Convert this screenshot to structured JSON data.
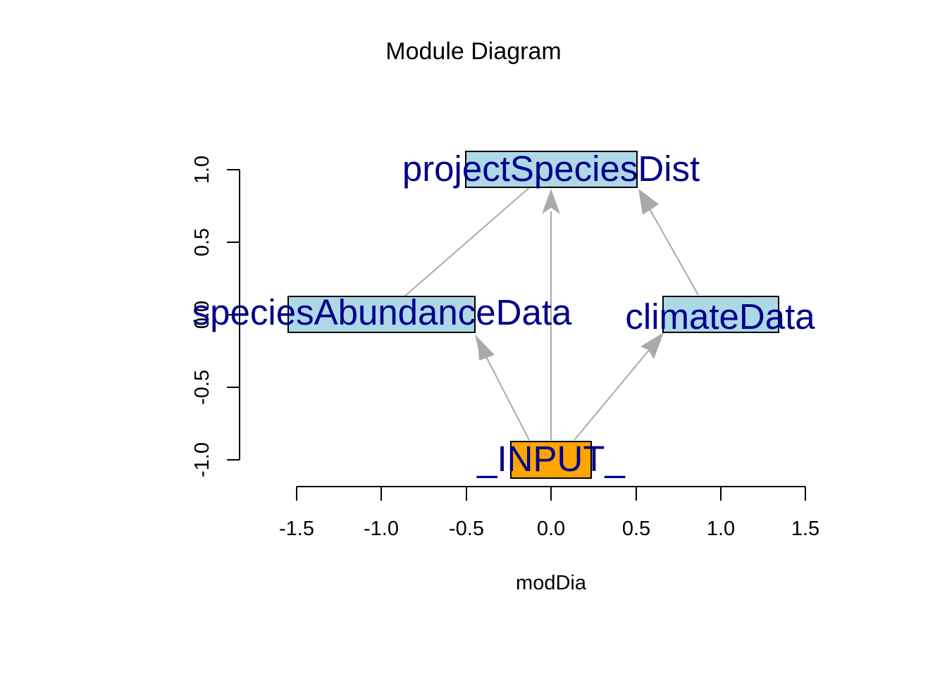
{
  "title": "Module Diagram",
  "xlabel": "modDia",
  "x_ticks": [
    "-1.5",
    "-1.0",
    "-0.5",
    "0.0",
    "0.5",
    "1.0",
    "1.5"
  ],
  "y_ticks": [
    "-1.0",
    "-0.5",
    "0.0",
    "0.5",
    "1.0"
  ],
  "colors": {
    "module_fill": "#add8e6",
    "input_fill": "#ffa500",
    "label": "#00008b",
    "edge": "#aaaaaa"
  },
  "nodes": [
    {
      "id": "projectSpeciesDist",
      "label": "projectSpeciesDist",
      "x": 0.0,
      "y": 1.0,
      "type": "module"
    },
    {
      "id": "speciesAbundanceData",
      "label": "speciesAbundanceData",
      "x": -1.0,
      "y": 0.0,
      "type": "module"
    },
    {
      "id": "climateData",
      "label": "climateData",
      "x": 1.0,
      "y": 0.0,
      "type": "module"
    },
    {
      "id": "_INPUT_",
      "label": "_INPUT_",
      "x": 0.0,
      "y": -1.0,
      "type": "input"
    }
  ],
  "edges": [
    {
      "from": "_INPUT_",
      "to": "speciesAbundanceData",
      "arrow": true
    },
    {
      "from": "_INPUT_",
      "to": "projectSpeciesDist",
      "arrow": true
    },
    {
      "from": "_INPUT_",
      "to": "climateData",
      "arrow": true
    },
    {
      "from": "speciesAbundanceData",
      "to": "projectSpeciesDist",
      "arrow": false
    },
    {
      "from": "climateData",
      "to": "projectSpeciesDist",
      "arrow": true
    }
  ]
}
